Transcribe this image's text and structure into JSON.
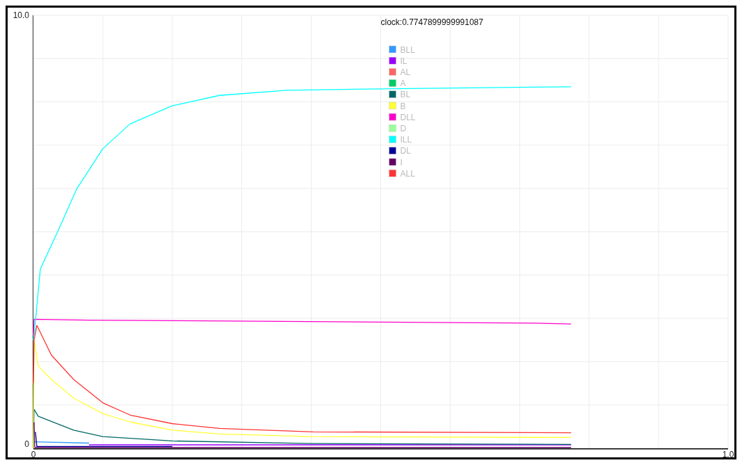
{
  "chart_data": {
    "type": "line",
    "title": "clock:0.7747899999991087",
    "xlim": [
      0,
      1
    ],
    "ylim": [
      0,
      10
    ],
    "xticks": [
      0,
      {
        "value": 0.1,
        "label": null
      },
      {
        "value": 0.2,
        "label": null
      },
      {
        "value": 0.3,
        "label": null
      },
      {
        "value": 0.4,
        "label": null
      },
      {
        "value": 0.5,
        "label": null
      },
      {
        "value": 0.6,
        "label": null
      },
      {
        "value": 0.7,
        "label": null
      },
      {
        "value": 0.8,
        "label": null
      },
      {
        "value": 0.9,
        "label": null
      },
      {
        "value": 1,
        "label": "1.0"
      }
    ],
    "yticks": [
      0,
      {
        "value": 1,
        "label": null
      },
      {
        "value": 2,
        "label": null
      },
      {
        "value": 3,
        "label": null
      },
      {
        "value": 4,
        "label": null
      },
      {
        "value": 5,
        "label": null
      },
      {
        "value": 6,
        "label": null
      },
      {
        "value": 7,
        "label": null
      },
      {
        "value": 8,
        "label": null
      },
      {
        "value": 9,
        "label": null
      },
      {
        "value": 10,
        "label": "10.0"
      }
    ],
    "grid": true,
    "legend": "top",
    "line_style": "solid",
    "marker": "none",
    "series": [
      {
        "name": "BLL",
        "color": "#3399ff",
        "x": [
          0.001,
          0.08
        ],
        "values": [
          0.15,
          0.12
        ]
      },
      {
        "name": "IL",
        "color": "#9900ff",
        "x": [
          0.08,
          0.774
        ],
        "values": [
          0.08,
          0.08
        ]
      },
      {
        "name": "AL",
        "color": "#ff6666"
      },
      {
        "name": "A",
        "color": "#00cc66"
      },
      {
        "name": "BL",
        "color": "#006666",
        "x": [
          0,
          0.001,
          0.007,
          0.058,
          0.1,
          0.2,
          0.4,
          0.774
        ],
        "values": [
          0,
          0.9,
          0.74,
          0.42,
          0.27,
          0.17,
          0.11,
          0.09
        ]
      },
      {
        "name": "B",
        "color": "#ffff33",
        "x": [
          0,
          0.001,
          0.007,
          0.026,
          0.058,
          0.1,
          0.139,
          0.2,
          0.268,
          0.4,
          0.774
        ],
        "values": [
          0,
          2.5,
          1.9,
          1.59,
          1.16,
          0.8,
          0.61,
          0.42,
          0.33,
          0.27,
          0.25
        ]
      },
      {
        "name": "DLL",
        "color": "#ff00cc",
        "x": [
          0,
          0.001,
          0.08,
          0.36,
          0.72,
          0.774
        ],
        "values": [
          2.6,
          2.98,
          2.96,
          2.93,
          2.89,
          2.87
        ]
      },
      {
        "name": "D",
        "color": "#99ff99"
      },
      {
        "name": "ILL",
        "color": "#00ffff",
        "x": [
          0,
          0.001,
          0.01,
          0.036,
          0.062,
          0.1,
          0.139,
          0.2,
          0.268,
          0.365,
          0.5,
          0.774
        ],
        "values": [
          2.5,
          2.6,
          4.14,
          5.04,
          5.98,
          6.92,
          7.49,
          7.91,
          8.15,
          8.27,
          8.3,
          8.35
        ]
      },
      {
        "name": "DL",
        "color": "#000099",
        "x": [
          0.003,
          0.005,
          0.2
        ],
        "values": [
          0.38,
          0.04,
          0.04
        ]
      },
      {
        "name": "I",
        "color": "#660066",
        "x": [
          0.001,
          0.002,
          0.774
        ],
        "values": [
          0.6,
          0.02,
          0.02
        ]
      },
      {
        "name": "ALL",
        "color": "#ff3333",
        "x": [
          0,
          0.001,
          0.005,
          0.026,
          0.058,
          0.1,
          0.139,
          0.2,
          0.268,
          0.403,
          0.774
        ],
        "values": [
          1.5,
          2.5,
          2.84,
          2.15,
          1.59,
          1.05,
          0.77,
          0.57,
          0.46,
          0.38,
          0.36
        ]
      }
    ]
  }
}
